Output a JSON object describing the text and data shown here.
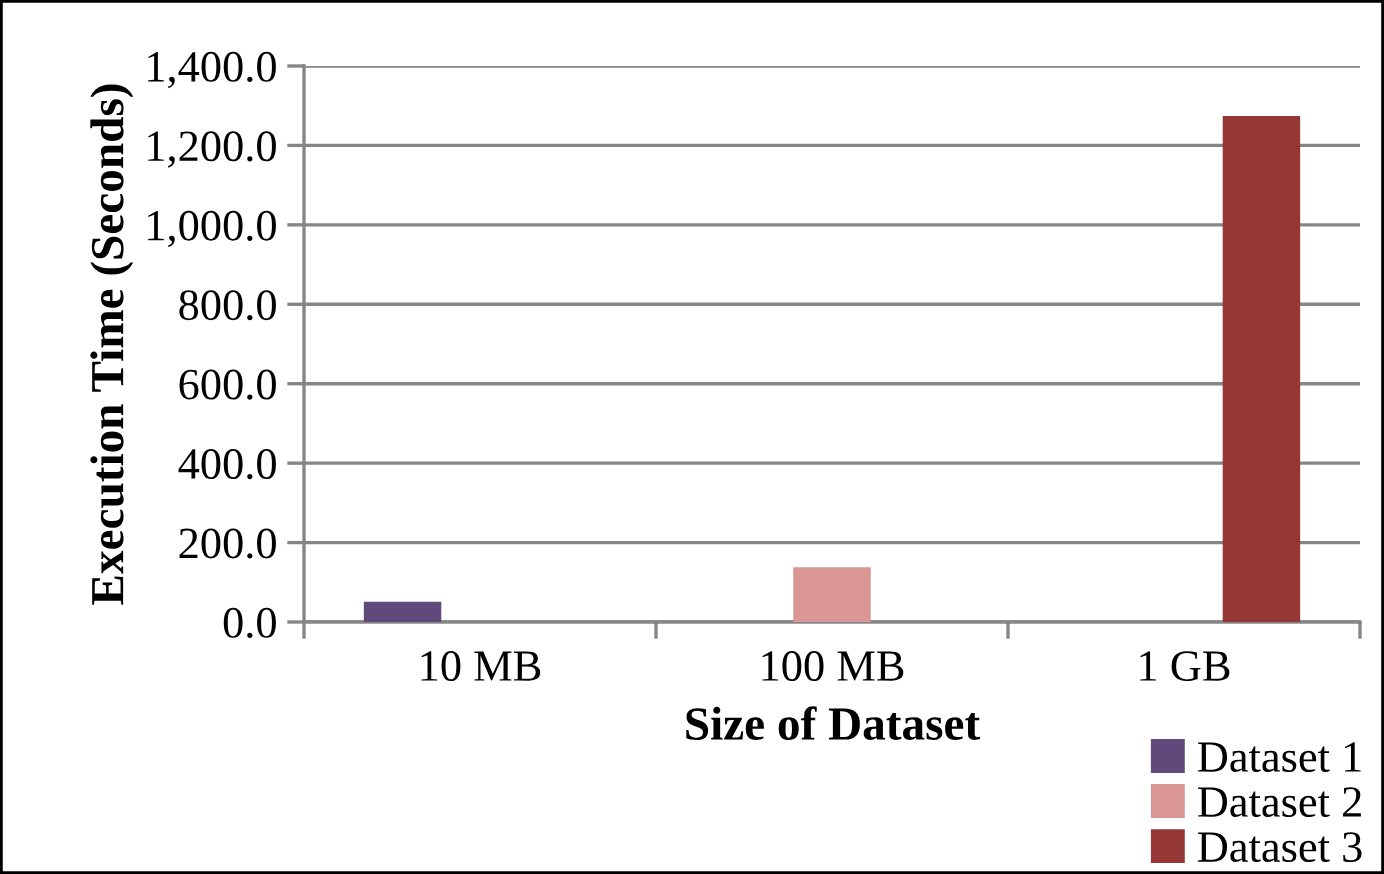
{
  "chart_data": {
    "type": "bar",
    "xlabel": "Size of Dataset",
    "ylabel": "Execution Time (Seconds)",
    "categories": [
      "10 MB",
      "100 MB",
      "1 GB"
    ],
    "series": [
      {
        "name": "Dataset 1",
        "color": "#604a7b",
        "values": [
          51,
          null,
          null
        ]
      },
      {
        "name": "Dataset 2",
        "color": "#d99694",
        "values": [
          null,
          138,
          null
        ]
      },
      {
        "name": "Dataset 3",
        "color": "#953735",
        "values": [
          null,
          null,
          1274
        ]
      }
    ],
    "ylim": [
      0,
      1400
    ],
    "yticks": [
      {
        "value": 0,
        "label": "0.0"
      },
      {
        "value": 200,
        "label": "200.0"
      },
      {
        "value": 400,
        "label": "400.0"
      },
      {
        "value": 600,
        "label": "600.0"
      },
      {
        "value": 800,
        "label": "800.0"
      },
      {
        "value": 1000,
        "label": "1,000.0"
      },
      {
        "value": 1200,
        "label": "1,200.0"
      },
      {
        "value": 1400,
        "label": "1,400.0"
      }
    ],
    "grid": "y",
    "legend": "bottom right"
  }
}
